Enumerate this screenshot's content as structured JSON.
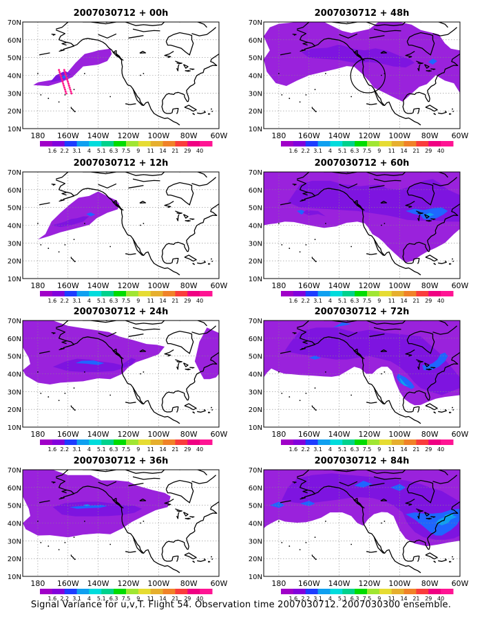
{
  "figure": {
    "caption": "Signal Variance for u,v,T. Flight 54. Observation time 2007030712. 2007030300 ensemble.",
    "lon_labels": [
      "180",
      "160W",
      "140W",
      "120W",
      "100W",
      "80W",
      "60W"
    ],
    "lat_labels": [
      "10N",
      "20N",
      "30N",
      "40N",
      "50N",
      "60N",
      "70N"
    ],
    "lon_range_deg_west": [
      190,
      60
    ],
    "lat_range_deg_north": [
      10,
      70
    ],
    "colorbar": {
      "labels": [
        "1.6",
        "2.2",
        "3.1",
        "4",
        "5.1",
        "6.3",
        "7.5",
        "9",
        "11",
        "14",
        "21",
        "29",
        "40"
      ],
      "colors": [
        "#a000c8",
        "#8200dc",
        "#1e3cff",
        "#0fa0f0",
        "#00dcdc",
        "#00d28c",
        "#00dc00",
        "#a0e632",
        "#e6dc32",
        "#e6af2d",
        "#f08228",
        "#fa3c3c",
        "#f00082",
        "#ff1493"
      ]
    },
    "panels": [
      {
        "title": "2007030712 + 00h",
        "lead": "00h",
        "flight_track": true,
        "circle": false
      },
      {
        "title": "2007030712 + 48h",
        "lead": "48h",
        "flight_track": false,
        "circle": true
      },
      {
        "title": "2007030712 + 12h",
        "lead": "12h",
        "flight_track": false,
        "circle": false
      },
      {
        "title": "2007030712 + 60h",
        "lead": "60h",
        "flight_track": false,
        "circle": false
      },
      {
        "title": "2007030712 + 24h",
        "lead": "24h",
        "flight_track": false,
        "circle": false
      },
      {
        "title": "2007030712 + 72h",
        "lead": "72h",
        "flight_track": false,
        "circle": false
      },
      {
        "title": "2007030712 + 36h",
        "lead": "36h",
        "flight_track": false,
        "circle": false
      },
      {
        "title": "2007030712 + 84h",
        "lead": "84h",
        "flight_track": false,
        "circle": false
      }
    ]
  }
}
